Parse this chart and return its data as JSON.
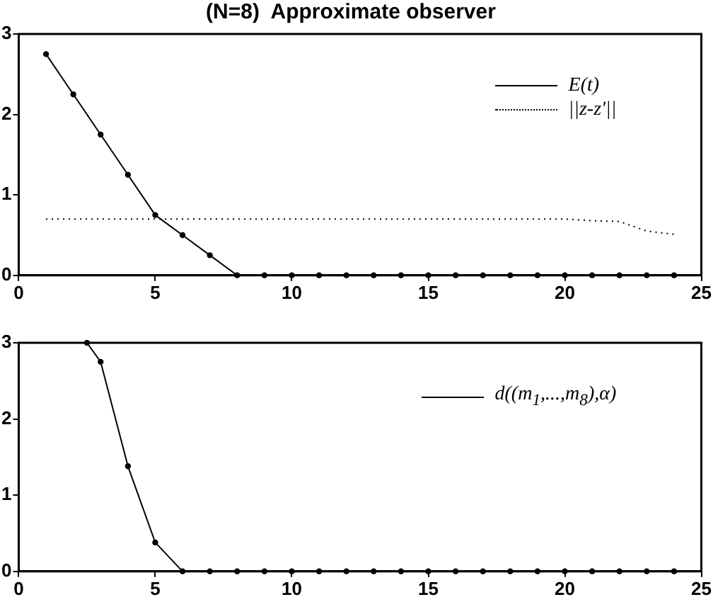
{
  "chart_data": [
    {
      "type": "line",
      "title": "(N=8)  Approximate observer",
      "x": [
        1,
        2,
        3,
        4,
        5,
        6,
        7,
        8,
        9,
        10,
        11,
        12,
        13,
        14,
        15,
        16,
        17,
        18,
        19,
        20,
        21,
        22,
        23,
        24
      ],
      "xlim": [
        0,
        25
      ],
      "xticks": [
        0,
        5,
        10,
        15,
        20,
        25
      ],
      "ylim": [
        0,
        3
      ],
      "yticks": [
        0,
        1,
        2,
        3
      ],
      "grid": false,
      "legend": "top right",
      "series": [
        {
          "name": "E(t)",
          "color": "#000000",
          "line_style": "solid",
          "marker": "circle",
          "values": [
            2.75,
            2.25,
            1.75,
            1.25,
            0.75,
            0.5,
            0.25,
            0,
            0,
            0,
            0,
            0,
            0,
            0,
            0,
            0,
            0,
            0,
            0,
            0,
            0,
            0,
            0,
            0
          ]
        },
        {
          "name": "||z-z'||",
          "color": "#000000",
          "line_style": "dotted",
          "marker": "none",
          "values": [
            0.7,
            0.7,
            0.7,
            0.7,
            0.7,
            0.7,
            0.7,
            0.7,
            0.7,
            0.7,
            0.7,
            0.7,
            0.7,
            0.7,
            0.7,
            0.7,
            0.7,
            0.7,
            0.7,
            0.7,
            0.68,
            0.67,
            0.55,
            0.51
          ]
        }
      ]
    },
    {
      "type": "line",
      "xlim": [
        0,
        25
      ],
      "xticks": [
        0,
        5,
        10,
        15,
        20,
        25
      ],
      "ylim": [
        0,
        3
      ],
      "yticks": [
        0,
        1,
        2,
        3
      ],
      "grid": false,
      "legend": "top right",
      "series": [
        {
          "name": "d((m$_{1}$,...,m$_{8}$),α)",
          "color": "#000000",
          "line_style": "solid",
          "marker": "circle",
          "x": [
            2.5,
            3,
            4,
            5,
            6,
            7,
            8,
            9,
            10,
            11,
            12,
            13,
            14,
            15,
            16,
            17,
            18,
            19,
            20,
            21,
            22,
            23,
            24
          ],
          "values": [
            3,
            2.75,
            1.38,
            0.38,
            0,
            0,
            0,
            0,
            0,
            0,
            0,
            0,
            0,
            0,
            0,
            0,
            0,
            0,
            0,
            0,
            0,
            0,
            0
          ]
        }
      ]
    }
  ]
}
